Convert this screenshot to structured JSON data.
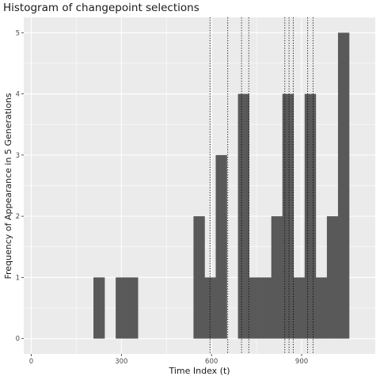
{
  "chart_data": {
    "type": "bar",
    "title": "Histogram of changepoint selections",
    "xlabel": "Time Index (t)",
    "ylabel": "Frequency of Appearance in 5 Generations",
    "xlim": [
      -25,
      1145
    ],
    "ylim": [
      -0.25,
      5.25
    ],
    "bin_width": 37,
    "bins": [
      {
        "x0": 207,
        "x1": 244,
        "count": 1
      },
      {
        "x0": 281,
        "x1": 318,
        "count": 1
      },
      {
        "x0": 318,
        "x1": 355,
        "count": 1
      },
      {
        "x0": 540,
        "x1": 577,
        "count": 2
      },
      {
        "x0": 577,
        "x1": 614,
        "count": 1
      },
      {
        "x0": 614,
        "x1": 651,
        "count": 3
      },
      {
        "x0": 688,
        "x1": 725,
        "count": 4
      },
      {
        "x0": 725,
        "x1": 762,
        "count": 1
      },
      {
        "x0": 762,
        "x1": 799,
        "count": 1
      },
      {
        "x0": 799,
        "x1": 836,
        "count": 2
      },
      {
        "x0": 836,
        "x1": 873,
        "count": 4
      },
      {
        "x0": 873,
        "x1": 910,
        "count": 1
      },
      {
        "x0": 910,
        "x1": 947,
        "count": 4
      },
      {
        "x0": 947,
        "x1": 984,
        "count": 1
      },
      {
        "x0": 984,
        "x1": 1021,
        "count": 2
      },
      {
        "x0": 1021,
        "x1": 1058,
        "count": 5
      }
    ],
    "vlines": [
      595,
      654,
      700,
      724,
      844,
      858,
      872,
      920,
      938
    ],
    "xticks": [
      {
        "value": 0,
        "label": "0"
      },
      {
        "value": 300,
        "label": "300"
      },
      {
        "value": 600,
        "label": "600"
      },
      {
        "value": 900,
        "label": "900"
      }
    ],
    "yticks": [
      {
        "value": 0,
        "label": "0"
      },
      {
        "value": 1,
        "label": "1"
      },
      {
        "value": 2,
        "label": "2"
      },
      {
        "value": 3,
        "label": "3"
      },
      {
        "value": 4,
        "label": "4"
      },
      {
        "value": 5,
        "label": "5"
      }
    ],
    "grid": true,
    "colors": {
      "panel": "#ebebeb",
      "grid_major": "#ffffff",
      "bar": "#595959",
      "vline": "#000000",
      "tick": "#333333"
    }
  }
}
